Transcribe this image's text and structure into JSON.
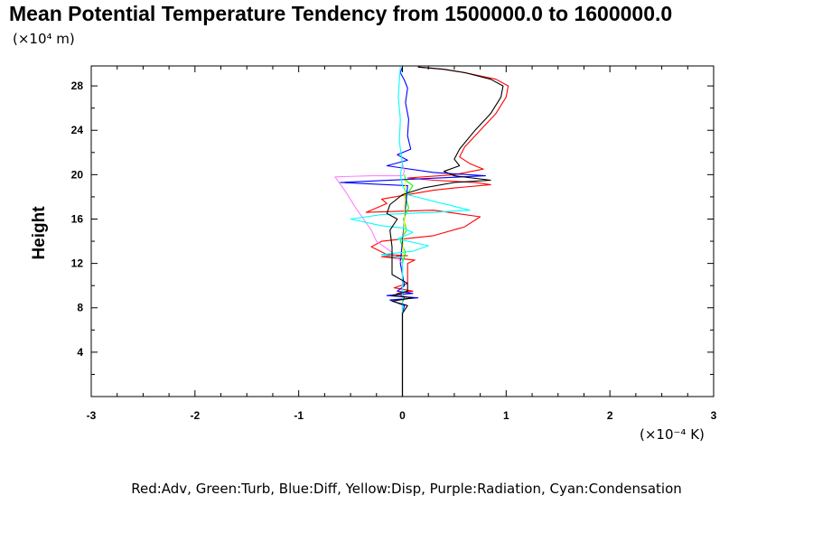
{
  "chart_data": {
    "type": "line",
    "title": "Mean Potential Temperature Tendency from 1500000.0 to 1600000.0",
    "ylabel": "Height",
    "y_unit": "(×10⁴ m)",
    "x_unit": "(×10⁻⁴ K)",
    "xlim": [
      -3,
      3
    ],
    "ylim": [
      0,
      29.8
    ],
    "x_ticks": [
      "-3",
      "-2",
      "-1",
      "0",
      "1",
      "2",
      "3"
    ],
    "x_tick_values": [
      -3,
      -2,
      -1,
      0,
      1,
      2,
      3
    ],
    "y_ticks": [
      "4",
      "8",
      "12",
      "16",
      "20",
      "24",
      "28"
    ],
    "y_tick_values": [
      4,
      8,
      12,
      16,
      20,
      24,
      28
    ],
    "grid": false,
    "legend_text": "Red:Adv, Green:Turb, Blue:Diff, Yellow:Disp, Purple:Radiation, Cyan:Condensation",
    "series": [
      {
        "name": "Adv",
        "color": "#ff0000",
        "points": [
          [
            0,
            0
          ],
          [
            0,
            8.5
          ],
          [
            0.02,
            9.0
          ],
          [
            -0.05,
            9.3
          ],
          [
            0.1,
            9.5
          ],
          [
            -0.08,
            9.8
          ],
          [
            0.05,
            10.2
          ],
          [
            0.05,
            12
          ],
          [
            0.12,
            12.3
          ],
          [
            -0.2,
            12.6
          ],
          [
            0.05,
            12.7
          ],
          [
            -0.15,
            12.8
          ],
          [
            -0.3,
            13.5
          ],
          [
            -0.2,
            14
          ],
          [
            0.3,
            14.5
          ],
          [
            0.6,
            15.3
          ],
          [
            0.75,
            16.2
          ],
          [
            0.3,
            16.8
          ],
          [
            -0.35,
            16.6
          ],
          [
            -0.15,
            17.4
          ],
          [
            -0.2,
            17.8
          ],
          [
            0.3,
            18.6
          ],
          [
            0.5,
            18.8
          ],
          [
            0.85,
            19.1
          ],
          [
            0.7,
            19.3
          ],
          [
            0.3,
            19.5
          ],
          [
            0.05,
            19.7
          ],
          [
            0.5,
            20.0
          ],
          [
            0.78,
            20.5
          ],
          [
            0.65,
            21.0
          ],
          [
            0.55,
            21.6
          ],
          [
            0.6,
            22.5
          ],
          [
            0.75,
            24
          ],
          [
            0.9,
            25.5
          ],
          [
            1.0,
            27
          ],
          [
            1.02,
            28
          ],
          [
            0.9,
            28.6
          ],
          [
            0.6,
            29.2
          ],
          [
            0.4,
            29.5
          ],
          [
            0.15,
            29.7
          ]
        ]
      },
      {
        "name": "Turb",
        "color": "#00ff00",
        "points": [
          [
            0,
            0
          ],
          [
            0,
            12
          ],
          [
            0.03,
            13
          ],
          [
            -0.02,
            14
          ],
          [
            0.04,
            15
          ],
          [
            0.01,
            16
          ],
          [
            0.06,
            17
          ],
          [
            0.03,
            18
          ],
          [
            0.1,
            19
          ],
          [
            0.03,
            19.5
          ],
          [
            0.02,
            20
          ]
        ]
      },
      {
        "name": "Diff",
        "color": "#0000ff",
        "points": [
          [
            0,
            0
          ],
          [
            0,
            7.5
          ],
          [
            0.02,
            8.2
          ],
          [
            -0.12,
            8.7
          ],
          [
            0.15,
            8.9
          ],
          [
            -0.15,
            9.1
          ],
          [
            0.1,
            9.3
          ],
          [
            -0.05,
            9.5
          ],
          [
            0.02,
            10
          ],
          [
            -0.02,
            12
          ],
          [
            0.05,
            19
          ],
          [
            -0.6,
            19.3
          ],
          [
            0.8,
            19.9
          ],
          [
            0.3,
            20.2
          ],
          [
            -0.15,
            20.8
          ],
          [
            0.05,
            21.3
          ],
          [
            -0.05,
            21.8
          ],
          [
            0.08,
            22.3
          ],
          [
            0.05,
            23.5
          ],
          [
            0.06,
            25
          ],
          [
            0.03,
            26.5
          ],
          [
            0.05,
            27.8
          ],
          [
            0.02,
            28.5
          ],
          [
            -0.02,
            29.2
          ],
          [
            0,
            29.7
          ]
        ]
      },
      {
        "name": "Disp",
        "color": "#ffff00",
        "points": [
          [
            0,
            0
          ],
          [
            0,
            12
          ],
          [
            0.01,
            14
          ],
          [
            0.02,
            16
          ],
          [
            0.02,
            18
          ],
          [
            0.03,
            19.5
          ]
        ]
      },
      {
        "name": "Radiation",
        "color": "#ff80ff",
        "points": [
          [
            0,
            0
          ],
          [
            0,
            12
          ],
          [
            -0.1,
            13
          ],
          [
            -0.25,
            14
          ],
          [
            -0.3,
            15
          ],
          [
            -0.45,
            17
          ],
          [
            -0.55,
            18.5
          ],
          [
            -0.65,
            19.8
          ],
          [
            -0.3,
            19.9
          ],
          [
            0,
            19.9
          ],
          [
            0.02,
            20.3
          ],
          [
            0,
            21
          ]
        ]
      },
      {
        "name": "Condensation",
        "color": "#00ffff",
        "points": [
          [
            0,
            0
          ],
          [
            0,
            12.5
          ],
          [
            -0.2,
            12.8
          ],
          [
            0.1,
            13.1
          ],
          [
            0.25,
            13.6
          ],
          [
            -0.05,
            14.2
          ],
          [
            0.1,
            14.8
          ],
          [
            0,
            15.2
          ],
          [
            -0.2,
            15.4
          ],
          [
            -0.5,
            16
          ],
          [
            -0.2,
            16.4
          ],
          [
            0.3,
            16.6
          ],
          [
            0.65,
            16.8
          ],
          [
            0.3,
            17.6
          ],
          [
            0.05,
            18.2
          ],
          [
            0,
            19
          ],
          [
            -0.02,
            20
          ],
          [
            0,
            21
          ],
          [
            -0.03,
            23
          ],
          [
            -0.02,
            25
          ],
          [
            -0.04,
            27
          ],
          [
            -0.03,
            28.5
          ],
          [
            -0.02,
            29.7
          ]
        ]
      },
      {
        "name": "",
        "color": "#000000",
        "points": [
          [
            0,
            0
          ],
          [
            0,
            7.5
          ],
          [
            0.05,
            8.2
          ],
          [
            -0.1,
            8.6
          ],
          [
            0.1,
            8.9
          ],
          [
            -0.1,
            9.1
          ],
          [
            0.05,
            9.5
          ],
          [
            0.05,
            10.2
          ],
          [
            -0.1,
            11
          ],
          [
            -0.1,
            13.5
          ],
          [
            -0.12,
            15
          ],
          [
            -0.05,
            16
          ],
          [
            -0.15,
            16.5
          ],
          [
            -0.12,
            17.3
          ],
          [
            0,
            18.2
          ],
          [
            0.2,
            18.8
          ],
          [
            0.5,
            19.3
          ],
          [
            0.85,
            19.5
          ],
          [
            0.5,
            19.9
          ],
          [
            0.4,
            20.3
          ],
          [
            0.55,
            20.8
          ],
          [
            0.5,
            21.4
          ],
          [
            0.55,
            22.3
          ],
          [
            0.7,
            24
          ],
          [
            0.85,
            25.5
          ],
          [
            0.95,
            27
          ],
          [
            0.97,
            28
          ],
          [
            0.85,
            28.6
          ],
          [
            0.6,
            29.2
          ],
          [
            0.4,
            29.5
          ],
          [
            0.15,
            29.7
          ]
        ]
      }
    ]
  }
}
